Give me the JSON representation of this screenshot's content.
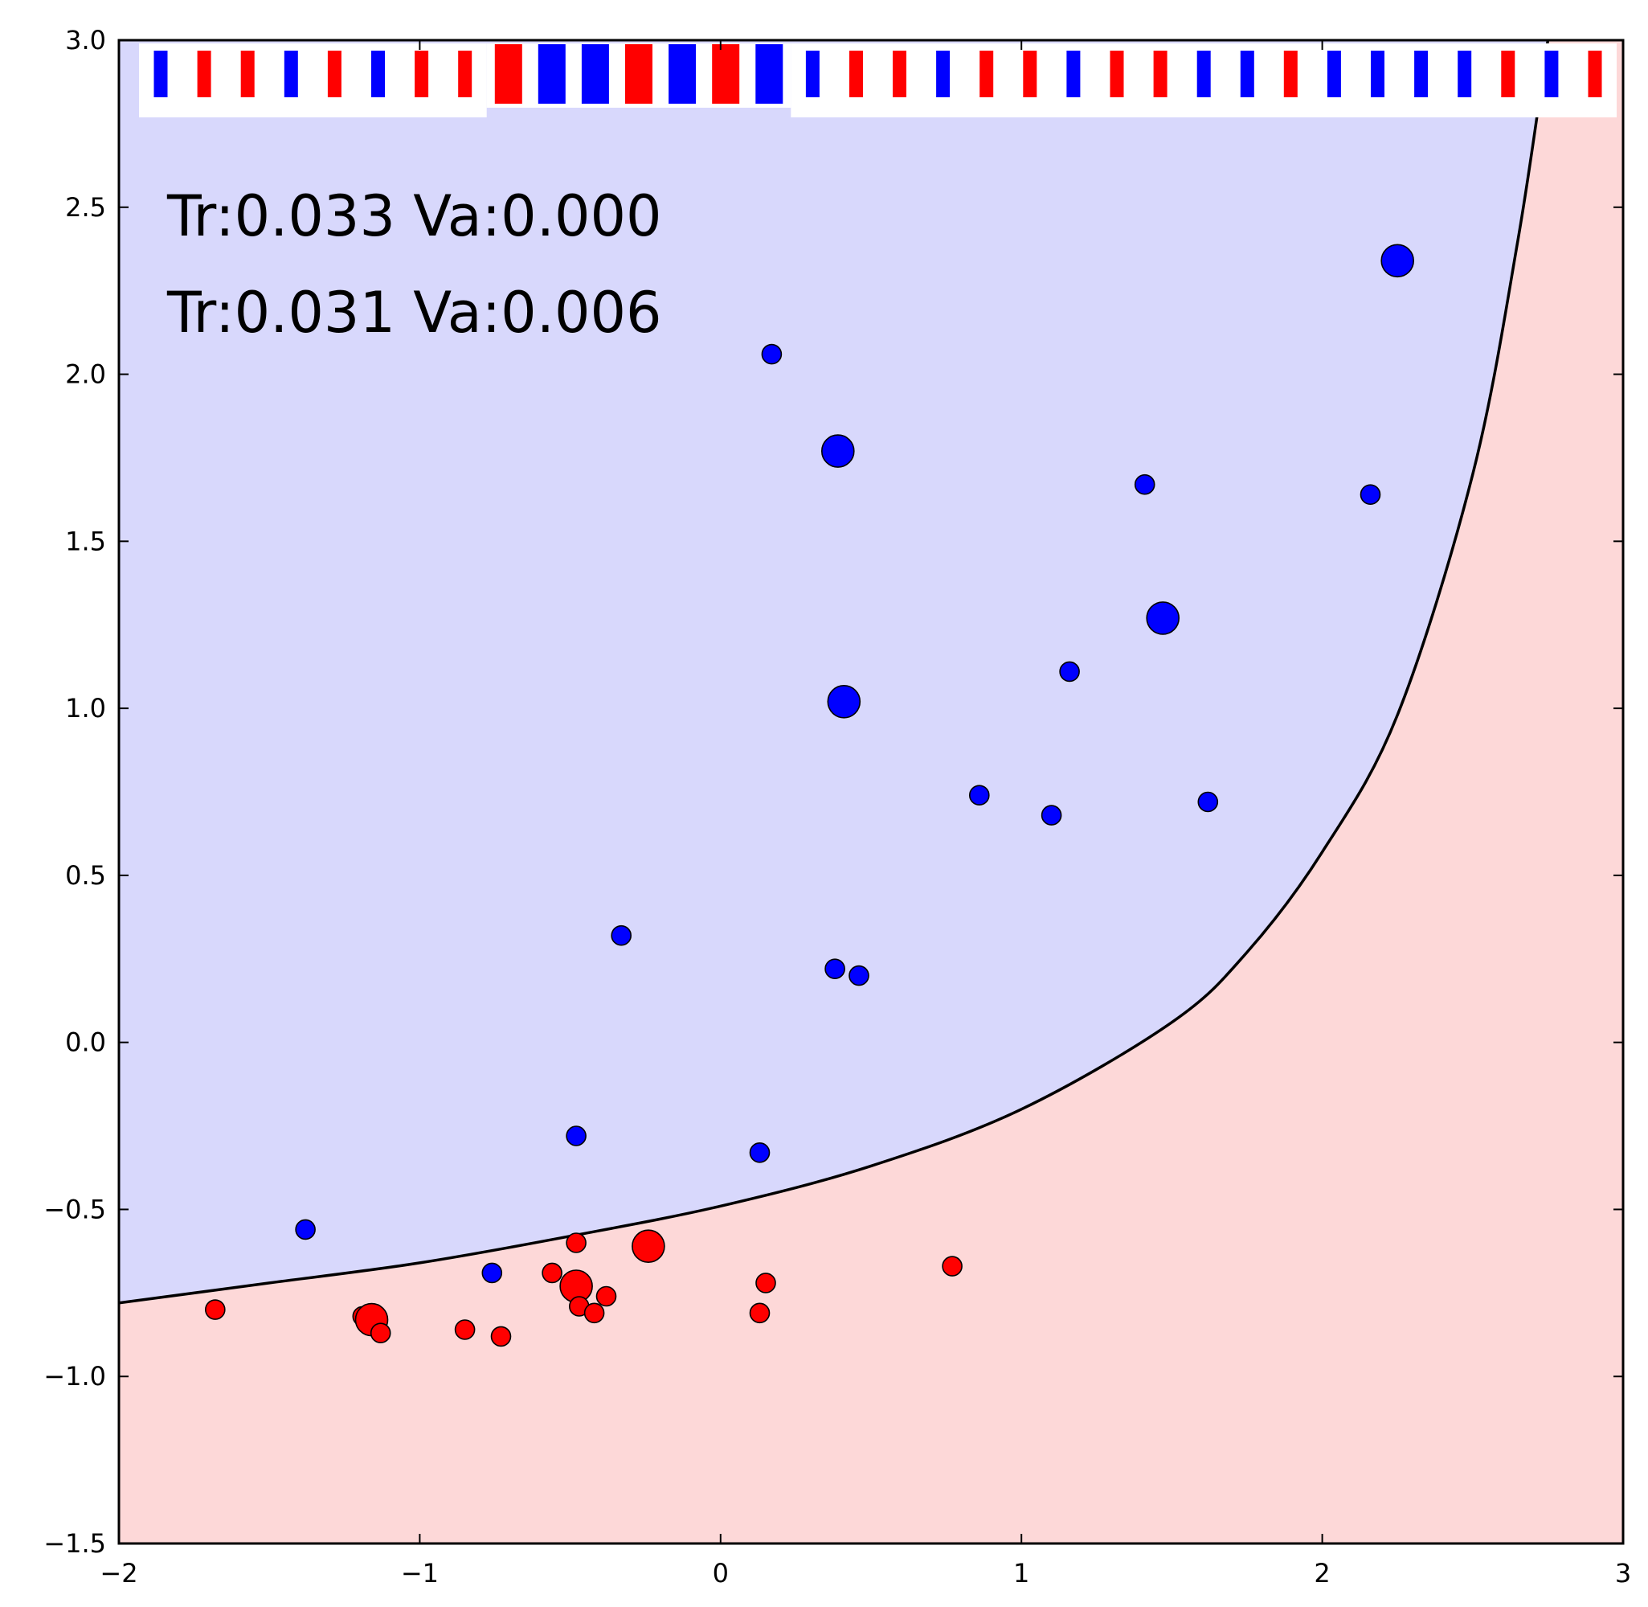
{
  "chart_data": {
    "type": "scatter",
    "title": "",
    "xlabel": "",
    "ylabel": "",
    "xlim": [
      -2,
      3
    ],
    "ylim": [
      -1.5,
      3.0
    ],
    "grid": false,
    "x_ticks": [
      -2,
      -1,
      0,
      1,
      2,
      3
    ],
    "x_tick_labels": [
      "−2",
      "−1",
      "0",
      "1",
      "2",
      "3"
    ],
    "y_ticks": [
      -1.5,
      -1.0,
      -0.5,
      0.0,
      0.5,
      1.0,
      1.5,
      2.0,
      2.5,
      3.0
    ],
    "y_tick_labels": [
      "−1.5",
      "−1.0",
      "−0.5",
      "0.0",
      "0.5",
      "1.0",
      "1.5",
      "2.0",
      "2.5",
      "3.0"
    ],
    "annotations": [
      "Tr:0.033 Va:0.000",
      "Tr:0.031 Va:0.006"
    ],
    "colors": {
      "blue": "#0000ff",
      "red": "#ff0000",
      "blue_region": "#d8d8fc",
      "red_region": "#fdd8d8",
      "boundary": "#000000"
    },
    "decision_boundary": {
      "x": [
        -2.0,
        -1.5,
        -1.0,
        -0.5,
        0.0,
        0.5,
        1.0,
        1.5,
        1.75,
        2.0,
        2.25,
        2.5,
        2.65,
        2.75
      ],
      "y": [
        -0.78,
        -0.72,
        -0.66,
        -0.58,
        -0.49,
        -0.37,
        -0.2,
        0.06,
        0.27,
        0.57,
        0.98,
        1.7,
        2.4,
        3.0
      ]
    },
    "series": [
      {
        "color": "blue",
        "points": [
          {
            "x": 2.25,
            "y": 2.34,
            "big": true
          },
          {
            "x": 0.17,
            "y": 2.06,
            "big": false
          },
          {
            "x": 0.39,
            "y": 1.77,
            "big": true
          },
          {
            "x": 1.41,
            "y": 1.67,
            "big": false
          },
          {
            "x": 2.16,
            "y": 1.64,
            "big": false
          },
          {
            "x": 1.47,
            "y": 1.27,
            "big": true
          },
          {
            "x": 1.16,
            "y": 1.11,
            "big": false
          },
          {
            "x": 0.41,
            "y": 1.02,
            "big": true
          },
          {
            "x": 0.86,
            "y": 0.74,
            "big": false
          },
          {
            "x": 1.1,
            "y": 0.68,
            "big": false
          },
          {
            "x": 1.62,
            "y": 0.72,
            "big": false
          },
          {
            "x": -0.33,
            "y": 0.32,
            "big": false
          },
          {
            "x": 0.38,
            "y": 0.22,
            "big": false
          },
          {
            "x": 0.46,
            "y": 0.2,
            "big": false
          },
          {
            "x": -0.48,
            "y": -0.28,
            "big": false
          },
          {
            "x": 0.13,
            "y": -0.33,
            "big": false
          },
          {
            "x": -1.38,
            "y": -0.56,
            "big": false
          },
          {
            "x": -0.76,
            "y": -0.69,
            "big": false
          }
        ]
      },
      {
        "color": "red",
        "points": [
          {
            "x": -0.24,
            "y": -0.61,
            "big": true
          },
          {
            "x": -0.48,
            "y": -0.6,
            "big": false
          },
          {
            "x": 0.77,
            "y": -0.67,
            "big": false
          },
          {
            "x": -0.56,
            "y": -0.69,
            "big": false
          },
          {
            "x": 0.15,
            "y": -0.72,
            "big": false
          },
          {
            "x": -0.48,
            "y": -0.73,
            "big": true
          },
          {
            "x": -0.38,
            "y": -0.76,
            "big": false
          },
          {
            "x": -0.47,
            "y": -0.79,
            "big": false
          },
          {
            "x": -0.42,
            "y": -0.81,
            "big": false
          },
          {
            "x": 0.13,
            "y": -0.81,
            "big": false
          },
          {
            "x": -1.68,
            "y": -0.8,
            "big": false
          },
          {
            "x": -1.19,
            "y": -0.82,
            "big": false
          },
          {
            "x": -1.16,
            "y": -0.83,
            "big": true
          },
          {
            "x": -1.13,
            "y": -0.87,
            "big": false
          },
          {
            "x": -0.85,
            "y": -0.86,
            "big": false
          },
          {
            "x": -0.73,
            "y": -0.88,
            "big": false
          }
        ]
      }
    ],
    "top_strip": {
      "groups": [
        {
          "big": false,
          "colors": [
            "blue",
            "red",
            "red",
            "blue",
            "red",
            "blue",
            "red",
            "red"
          ]
        },
        {
          "big": true,
          "colors": [
            "red",
            "blue",
            "blue",
            "red",
            "blue",
            "red",
            "blue"
          ]
        },
        {
          "big": false,
          "colors": [
            "blue",
            "red",
            "red",
            "blue",
            "red",
            "red",
            "blue",
            "red",
            "red",
            "blue",
            "blue",
            "red",
            "blue",
            "blue",
            "blue",
            "blue",
            "red",
            "blue",
            "red"
          ]
        }
      ]
    }
  }
}
